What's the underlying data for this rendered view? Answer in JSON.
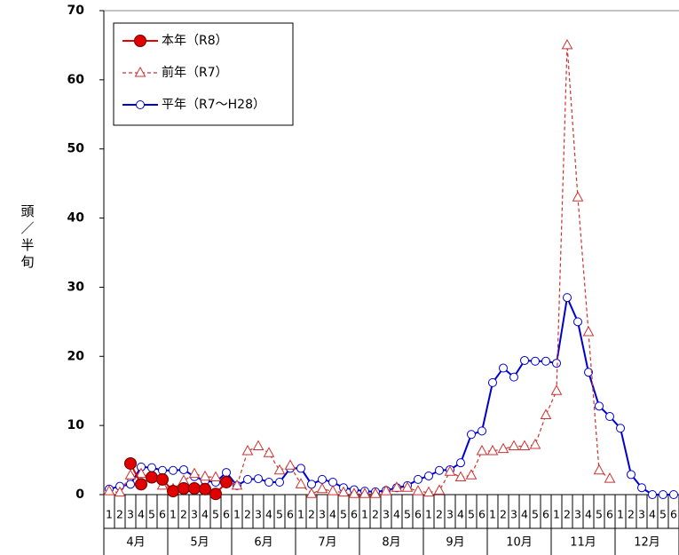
{
  "chart_data": {
    "type": "line",
    "ylabel": "頭／半旬",
    "categories": [
      "1",
      "2",
      "3",
      "4",
      "5",
      "6",
      "1",
      "2",
      "3",
      "4",
      "5",
      "6",
      "1",
      "2",
      "3",
      "4",
      "5",
      "6",
      "1",
      "2",
      "3",
      "4",
      "5",
      "6",
      "1",
      "2",
      "3",
      "4",
      "5",
      "6",
      "1",
      "2",
      "3",
      "4",
      "5",
      "6",
      "1",
      "2",
      "3",
      "4",
      "5",
      "6",
      "1",
      "2",
      "3",
      "4",
      "5",
      "6",
      "1",
      "2",
      "3",
      "4",
      "5",
      "6"
    ],
    "x_groups": [
      "4月",
      "5月",
      "6月",
      "7月",
      "8月",
      "9月",
      "10月",
      "11月",
      "12月"
    ],
    "ylim": [
      0,
      70
    ],
    "yticks": [
      0,
      10,
      20,
      30,
      40,
      50,
      60,
      70
    ],
    "legend": "upper left",
    "series": [
      {
        "name": "本年（R8）",
        "color": "#e00000",
        "marker": "circle-filled",
        "dash": false,
        "values": [
          null,
          null,
          4.5,
          1.5,
          2.5,
          2.2,
          0.5,
          0.9,
          0.9,
          0.8,
          0.1,
          1.8,
          null,
          null,
          null,
          null,
          null,
          null,
          null,
          null,
          null,
          null,
          null,
          null,
          null,
          null,
          null,
          null,
          null,
          null,
          null,
          null,
          null,
          null,
          null,
          null,
          null,
          null,
          null,
          null,
          null,
          null,
          null,
          null,
          null,
          null,
          null,
          null,
          null,
          null,
          null,
          null,
          null,
          null
        ]
      },
      {
        "name": "前年（R7）",
        "color": "#cc3333",
        "marker": "triangle",
        "dash": true,
        "values": [
          0.5,
          0.3,
          2.8,
          3.0,
          2.5,
          1.3,
          0.8,
          2.0,
          3.0,
          2.6,
          2.5,
          2.0,
          1.3,
          6.3,
          7.0,
          6.0,
          3.5,
          4.2,
          1.5,
          0.1,
          0.8,
          0.5,
          0.3,
          0.1,
          0.1,
          0.1,
          0.5,
          1.0,
          1.0,
          0.5,
          0.3,
          0.6,
          3.3,
          2.5,
          2.8,
          6.3,
          6.3,
          6.6,
          7.0,
          7.0,
          7.2,
          11.5,
          15.0,
          65.0,
          43.0,
          23.5,
          3.5,
          2.3,
          null,
          null,
          null,
          null,
          null,
          null
        ]
      },
      {
        "name": "平年（R7～H28）",
        "color": "#0000cc",
        "marker": "circle-open",
        "dash": false,
        "values": [
          0.8,
          1.2,
          1.5,
          4.0,
          3.9,
          3.5,
          3.5,
          3.6,
          2.6,
          2.0,
          1.8,
          3.2,
          1.3,
          2.2,
          2.3,
          1.8,
          1.8,
          3.8,
          3.8,
          1.5,
          2.2,
          1.8,
          1.0,
          0.7,
          0.5,
          0.4,
          0.6,
          1.0,
          1.3,
          2.2,
          2.7,
          3.5,
          3.6,
          4.6,
          8.7,
          9.2,
          16.2,
          18.3,
          17.0,
          19.4,
          19.3,
          19.3,
          19.0,
          28.5,
          25.0,
          17.7,
          12.8,
          11.3,
          9.6,
          2.9,
          1.0,
          0.0,
          0.0,
          0.0
        ]
      }
    ]
  }
}
